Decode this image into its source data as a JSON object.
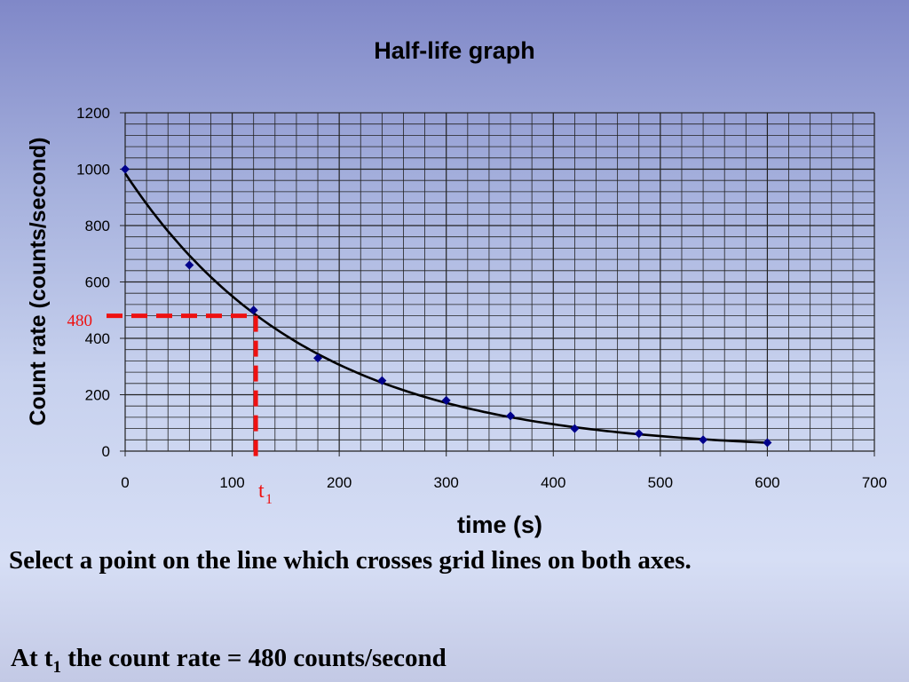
{
  "chart_data": {
    "type": "scatter",
    "title": "Half-life graph",
    "xlabel": "time (s)",
    "ylabel": "Count rate (counts/second)",
    "xlim": [
      0,
      700
    ],
    "ylim": [
      0,
      1200
    ],
    "x_ticks": [
      "0",
      "100",
      "200",
      "300",
      "400",
      "500",
      "600",
      "700"
    ],
    "y_ticks": [
      "0",
      "200",
      "400",
      "600",
      "800",
      "1000",
      "1200"
    ],
    "grid": true,
    "series": [
      {
        "x": [
          0,
          60,
          120,
          180,
          240,
          300,
          360,
          420,
          480,
          540,
          600
        ],
        "y": [
          1000,
          660,
          500,
          330,
          250,
          180,
          125,
          80,
          62,
          40,
          30
        ],
        "marker": "diamond",
        "color": "#00008b",
        "trendline": "exponential"
      }
    ],
    "annotations": {
      "reference_line_color": "#ee1111",
      "y_marker_label": "480",
      "y_marker_value": 480,
      "x_marker_label": "t",
      "x_marker_subscript": "1",
      "x_marker_value": 122
    }
  },
  "captions": {
    "instruction": "Select a point on the line which crosses grid lines on both axes.",
    "result_prefix": "At t",
    "result_subscript": "1",
    "result_suffix": " the count rate = 480 counts/second"
  }
}
